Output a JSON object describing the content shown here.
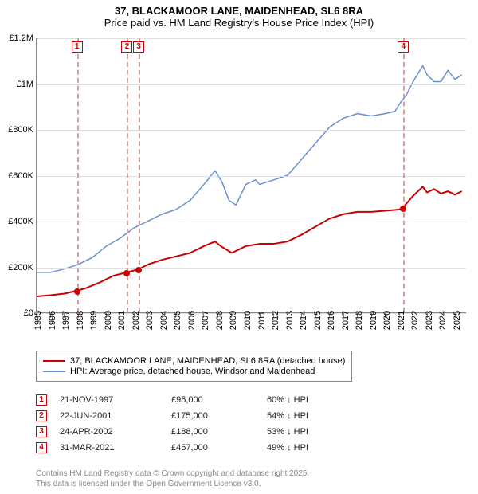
{
  "title": {
    "line1": "37, BLACKAMOOR LANE, MAIDENHEAD, SL6 8RA",
    "line2": "Price paid vs. HM Land Registry's House Price Index (HPI)"
  },
  "chart": {
    "type": "line",
    "x_domain": [
      1995,
      2025.8
    ],
    "y_domain": [
      0,
      1200000
    ],
    "y_ticks": [
      {
        "v": 0,
        "label": "£0"
      },
      {
        "v": 200000,
        "label": "£200K"
      },
      {
        "v": 400000,
        "label": "£400K"
      },
      {
        "v": 600000,
        "label": "£600K"
      },
      {
        "v": 800000,
        "label": "£800K"
      },
      {
        "v": 1000000,
        "label": "£1M"
      },
      {
        "v": 1200000,
        "label": "£1.2M"
      }
    ],
    "x_ticks": [
      1995,
      1996,
      1997,
      1998,
      1999,
      2000,
      2001,
      2002,
      2003,
      2004,
      2005,
      2006,
      2007,
      2008,
      2009,
      2010,
      2011,
      2012,
      2013,
      2014,
      2015,
      2016,
      2017,
      2018,
      2019,
      2020,
      2021,
      2022,
      2023,
      2024,
      2025
    ],
    "grid_color": "#e0e0e0",
    "axis_color": "#888888",
    "background": "#ffffff",
    "series": [
      {
        "name": "price_paid",
        "label": "37, BLACKAMOOR LANE, MAIDENHEAD, SL6 8RA (detached house)",
        "color": "#cc0000",
        "width": 2,
        "points": [
          [
            1995.0,
            70000
          ],
          [
            1996.0,
            75000
          ],
          [
            1997.0,
            82000
          ],
          [
            1997.9,
            95000
          ],
          [
            1998.5,
            105000
          ],
          [
            1999.5,
            130000
          ],
          [
            2000.5,
            160000
          ],
          [
            2001.47,
            175000
          ],
          [
            2002.31,
            188000
          ],
          [
            2003.0,
            210000
          ],
          [
            2004.0,
            230000
          ],
          [
            2005.0,
            245000
          ],
          [
            2006.0,
            260000
          ],
          [
            2007.0,
            290000
          ],
          [
            2007.8,
            310000
          ],
          [
            2008.2,
            290000
          ],
          [
            2009.0,
            260000
          ],
          [
            2010.0,
            290000
          ],
          [
            2011.0,
            300000
          ],
          [
            2012.0,
            300000
          ],
          [
            2013.0,
            310000
          ],
          [
            2014.0,
            340000
          ],
          [
            2015.0,
            375000
          ],
          [
            2016.0,
            410000
          ],
          [
            2017.0,
            430000
          ],
          [
            2018.0,
            440000
          ],
          [
            2019.0,
            440000
          ],
          [
            2020.0,
            445000
          ],
          [
            2021.0,
            450000
          ],
          [
            2021.25,
            457000
          ],
          [
            2022.0,
            510000
          ],
          [
            2022.7,
            550000
          ],
          [
            2023.0,
            525000
          ],
          [
            2023.5,
            540000
          ],
          [
            2024.0,
            520000
          ],
          [
            2024.5,
            530000
          ],
          [
            2025.0,
            515000
          ],
          [
            2025.5,
            530000
          ]
        ]
      },
      {
        "name": "hpi",
        "label": "HPI: Average price, detached house, Windsor and Maidenhead",
        "color": "#6a8fd0",
        "width": 1.5,
        "points": [
          [
            1995.0,
            175000
          ],
          [
            1996.0,
            175000
          ],
          [
            1997.0,
            190000
          ],
          [
            1998.0,
            210000
          ],
          [
            1999.0,
            240000
          ],
          [
            2000.0,
            290000
          ],
          [
            2001.0,
            325000
          ],
          [
            2002.0,
            370000
          ],
          [
            2003.0,
            400000
          ],
          [
            2004.0,
            430000
          ],
          [
            2005.0,
            450000
          ],
          [
            2006.0,
            490000
          ],
          [
            2007.0,
            560000
          ],
          [
            2007.8,
            620000
          ],
          [
            2008.3,
            570000
          ],
          [
            2008.8,
            490000
          ],
          [
            2009.3,
            470000
          ],
          [
            2010.0,
            560000
          ],
          [
            2010.7,
            580000
          ],
          [
            2011.0,
            560000
          ],
          [
            2012.0,
            580000
          ],
          [
            2013.0,
            600000
          ],
          [
            2014.0,
            670000
          ],
          [
            2015.0,
            740000
          ],
          [
            2016.0,
            810000
          ],
          [
            2017.0,
            850000
          ],
          [
            2018.0,
            870000
          ],
          [
            2019.0,
            860000
          ],
          [
            2020.0,
            870000
          ],
          [
            2020.7,
            880000
          ],
          [
            2021.0,
            910000
          ],
          [
            2021.5,
            950000
          ],
          [
            2022.0,
            1010000
          ],
          [
            2022.7,
            1080000
          ],
          [
            2023.0,
            1040000
          ],
          [
            2023.5,
            1010000
          ],
          [
            2024.0,
            1010000
          ],
          [
            2024.5,
            1060000
          ],
          [
            2025.0,
            1020000
          ],
          [
            2025.5,
            1040000
          ]
        ]
      }
    ],
    "sale_markers": [
      {
        "n": "1",
        "x": 1997.89,
        "date": "21-NOV-1997",
        "price": "£95,000",
        "delta": "60% ↓ HPI",
        "y": 95000
      },
      {
        "n": "2",
        "x": 2001.47,
        "date": "22-JUN-2001",
        "price": "£175,000",
        "delta": "54% ↓ HPI",
        "y": 175000
      },
      {
        "n": "3",
        "x": 2002.31,
        "date": "24-APR-2002",
        "price": "£188,000",
        "delta": "53% ↓ HPI",
        "y": 188000
      },
      {
        "n": "4",
        "x": 2021.25,
        "date": "31-MAR-2021",
        "price": "£457,000",
        "delta": "49% ↓ HPI",
        "y": 457000
      }
    ],
    "marker_line_color": "#d4a0a0",
    "marker_box_border": "#cc0000"
  },
  "legend": {
    "items": [
      {
        "color": "#cc0000",
        "width": 2,
        "text": "37, BLACKAMOOR LANE, MAIDENHEAD, SL6 8RA (detached house)"
      },
      {
        "color": "#6a8fd0",
        "width": 1.5,
        "text": "HPI: Average price, detached house, Windsor and Maidenhead"
      }
    ]
  },
  "footer": {
    "line1": "Contains HM Land Registry data © Crown copyright and database right 2025.",
    "line2": "This data is licensed under the Open Government Licence v3.0."
  }
}
